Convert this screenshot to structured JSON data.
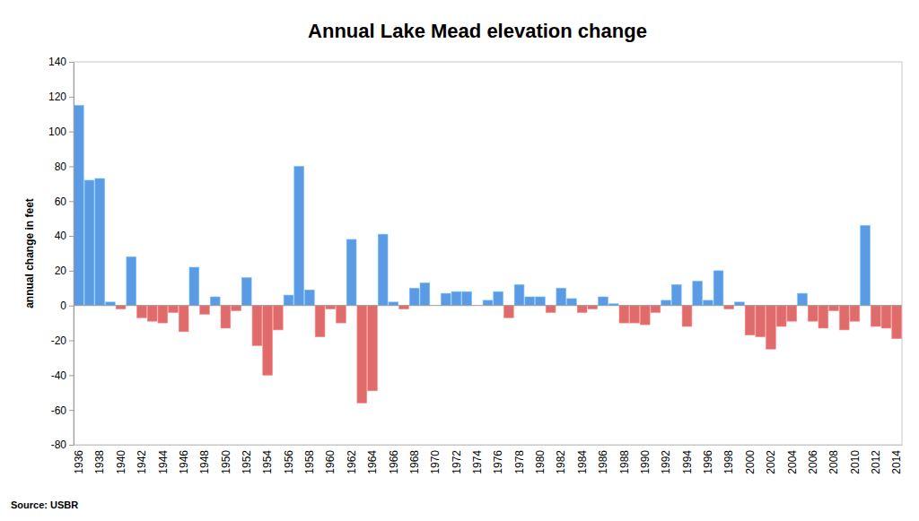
{
  "chart_data": {
    "type": "bar",
    "title": "Annual Lake Mead elevation change",
    "ylabel": "annual change in feet",
    "annotation": "Source: USBR",
    "categories": [
      "1936",
      null,
      "1938",
      null,
      "1940",
      null,
      "1942",
      null,
      "1944",
      null,
      "1946",
      null,
      "1948",
      null,
      "1950",
      null,
      "1952",
      null,
      "1954",
      null,
      "1956",
      null,
      "1958",
      null,
      "1960",
      null,
      "1962",
      null,
      "1964",
      null,
      "1966",
      null,
      "1968",
      null,
      "1970",
      null,
      "1972",
      null,
      "1974",
      null,
      "1976",
      null,
      "1978",
      null,
      "1980",
      null,
      "1982",
      null,
      "1984",
      null,
      "1986",
      null,
      "1988",
      null,
      "1990",
      null,
      "1992",
      null,
      "1994",
      null,
      "1996",
      null,
      "1998",
      null,
      "2000",
      null,
      "2002",
      null,
      "2004",
      null,
      "2006",
      null,
      "2008",
      null,
      "2010",
      null,
      "2012",
      null,
      "2014"
    ],
    "values": [
      115,
      72,
      73,
      2,
      -2,
      28,
      -7,
      -9,
      -10,
      -4,
      -15,
      22,
      -5,
      5,
      -13,
      -3,
      16,
      -23,
      -40,
      -14,
      6,
      80,
      9,
      -18,
      -2,
      -10,
      38,
      -56,
      -49,
      41,
      2,
      -2,
      10,
      13,
      0,
      7,
      8,
      8,
      0,
      3,
      8,
      -7,
      12,
      5,
      5,
      -4,
      10,
      4,
      -4,
      -2,
      5,
      1,
      -10,
      -10,
      -11,
      -4,
      3,
      12,
      -12,
      14,
      3,
      20,
      -2,
      2,
      -17,
      -18,
      -25,
      -12,
      -9,
      7,
      -9,
      -13,
      -3,
      -14,
      -9,
      46,
      -12,
      -13,
      -19
    ],
    "colors": [
      "#5b9be6",
      "#5b9be6",
      "#5b9be6",
      "#5b9be6",
      "#e06b6b",
      "#5b9be6",
      "#e06b6b",
      "#e06b6b",
      "#e06b6b",
      "#e06b6b",
      "#e06b6b",
      "#5b9be6",
      "#e06b6b",
      "#5b9be6",
      "#e06b6b",
      "#e06b6b",
      "#5b9be6",
      "#e06b6b",
      "#e06b6b",
      "#e06b6b",
      "#5b9be6",
      "#5b9be6",
      "#5b9be6",
      "#e06b6b",
      "#e06b6b",
      "#e06b6b",
      "#5b9be6",
      "#e06b6b",
      "#e06b6b",
      "#5b9be6",
      "#5b9be6",
      "#e06b6b",
      "#5b9be6",
      "#5b9be6",
      "#5b9be6",
      "#5b9be6",
      "#5b9be6",
      "#5b9be6",
      "#5b9be6",
      "#5b9be6",
      "#5b9be6",
      "#e06b6b",
      "#5b9be6",
      "#5b9be6",
      "#5b9be6",
      "#e06b6b",
      "#5b9be6",
      "#5b9be6",
      "#e06b6b",
      "#e06b6b",
      "#5b9be6",
      "#5b9be6",
      "#e06b6b",
      "#e06b6b",
      "#e06b6b",
      "#e06b6b",
      "#5b9be6",
      "#5b9be6",
      "#e06b6b",
      "#5b9be6",
      "#5b9be6",
      "#5b9be6",
      "#e06b6b",
      "#5b9be6",
      "#e06b6b",
      "#e06b6b",
      "#e06b6b",
      "#e06b6b",
      "#e06b6b",
      "#5b9be6",
      "#e06b6b",
      "#e06b6b",
      "#e06b6b",
      "#e06b6b",
      "#e06b6b",
      "#5b9be6",
      "#e06b6b",
      "#e06b6b",
      "#e06b6b"
    ],
    "ylim": [
      -80,
      140
    ],
    "yticks": [
      -80,
      -60,
      -40,
      -20,
      0,
      20,
      40,
      60,
      80,
      100,
      120,
      140
    ],
    "grid": false
  }
}
